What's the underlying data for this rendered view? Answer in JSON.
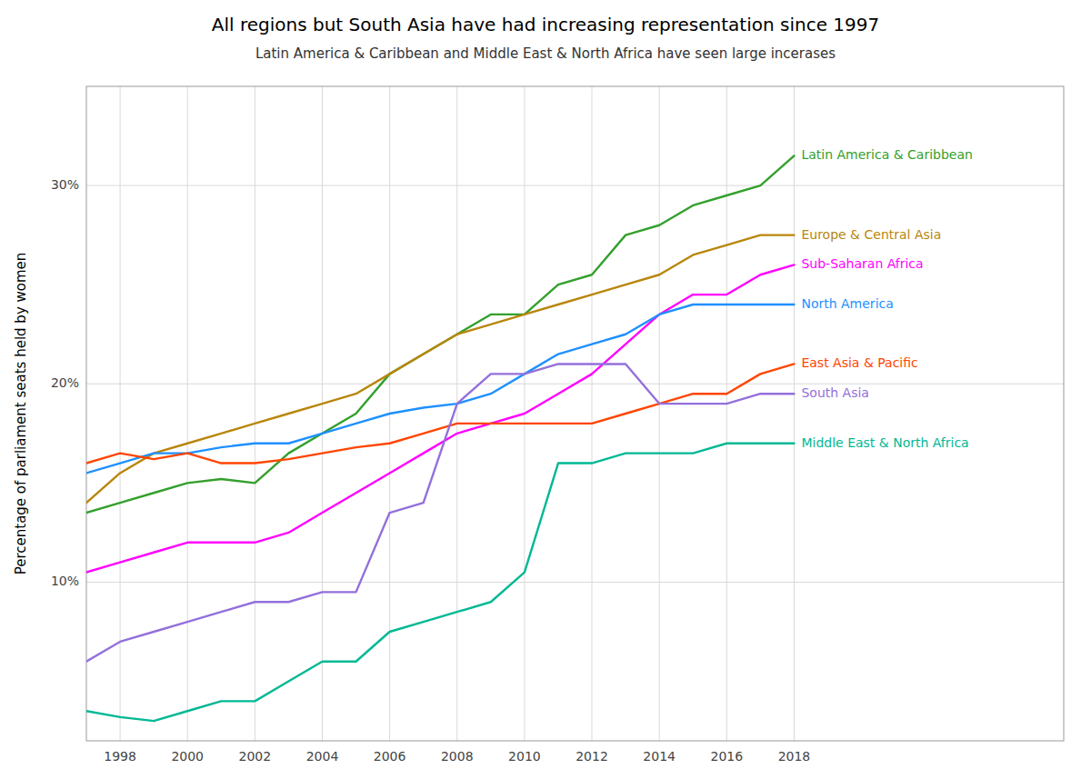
{
  "chart_data": {
    "type": "line",
    "title": "All regions but South Asia have had increasing representation since 1997",
    "subtitle": "Latin America & Caribbean and Middle East & North Africa have seen large incerases",
    "y_label": "Percentage of parliament seats held by women",
    "x": [
      1997,
      1998,
      1999,
      2000,
      2001,
      2002,
      2003,
      2004,
      2005,
      2006,
      2007,
      2008,
      2009,
      2010,
      2011,
      2012,
      2013,
      2014,
      2015,
      2016,
      2017,
      2018
    ],
    "series": [
      {
        "name": "Latin America & Caribbean",
        "color": "#33a02c",
        "values": [
          13.5,
          14.0,
          14.5,
          15.0,
          15.2,
          15.0,
          16.5,
          17.5,
          18.5,
          20.5,
          21.5,
          22.5,
          23.5,
          23.5,
          25.0,
          25.5,
          27.5,
          28.0,
          29.0,
          29.5,
          30.0,
          31.5
        ]
      },
      {
        "name": "Europe & Central Asia",
        "color": "#b8860b",
        "values": [
          14.0,
          15.5,
          16.5,
          17.0,
          17.5,
          18.0,
          18.5,
          19.0,
          19.5,
          20.5,
          21.5,
          22.5,
          23.0,
          23.5,
          24.0,
          24.5,
          25.0,
          25.5,
          26.5,
          27.0,
          27.5,
          27.5
        ]
      },
      {
        "name": "Sub-Saharan Africa",
        "color": "#ff00ff",
        "values": [
          10.5,
          11.0,
          11.5,
          12.0,
          12.0,
          12.0,
          12.5,
          13.5,
          14.5,
          15.5,
          16.5,
          17.5,
          18.0,
          18.5,
          19.5,
          20.5,
          22.0,
          23.5,
          24.5,
          24.5,
          25.5,
          26.0
        ]
      },
      {
        "name": "North America",
        "color": "#1e90ff",
        "values": [
          15.5,
          16.0,
          16.5,
          16.5,
          16.8,
          17.0,
          17.0,
          17.5,
          18.0,
          18.5,
          18.8,
          19.0,
          19.5,
          20.5,
          21.5,
          22.0,
          22.5,
          23.5,
          24.0,
          24.0,
          24.0,
          24.0
        ]
      },
      {
        "name": "East Asia & Pacific",
        "color": "#ff4500",
        "values": [
          16.0,
          16.5,
          16.2,
          16.5,
          16.0,
          16.0,
          16.2,
          16.5,
          16.8,
          17.0,
          17.5,
          18.0,
          18.0,
          18.0,
          18.0,
          18.0,
          18.5,
          19.0,
          19.5,
          19.5,
          20.5,
          21.0
        ]
      },
      {
        "name": "South Asia",
        "color": "#9370db",
        "values": [
          6.0,
          7.0,
          7.5,
          8.0,
          8.5,
          9.0,
          9.0,
          9.5,
          9.5,
          13.5,
          14.0,
          19.0,
          20.5,
          20.5,
          21.0,
          21.0,
          21.0,
          19.0,
          19.0,
          19.0,
          19.5,
          19.5
        ]
      },
      {
        "name": "Middle East & North Africa",
        "color": "#00b894",
        "values": [
          3.5,
          3.2,
          3.0,
          3.5,
          4.0,
          4.0,
          5.0,
          6.0,
          6.0,
          7.5,
          8.0,
          8.5,
          9.0,
          10.5,
          16.0,
          16.0,
          16.5,
          16.5,
          16.5,
          17.0,
          17.0,
          17.0
        ]
      }
    ],
    "xlim": [
      1997,
      2026
    ],
    "ylim": [
      2,
      35
    ],
    "xticks": [
      1998,
      2000,
      2002,
      2004,
      2006,
      2008,
      2010,
      2012,
      2014,
      2016,
      2018
    ],
    "yticks": [
      {
        "value": 10,
        "label": "10%"
      },
      {
        "value": 20,
        "label": "20%"
      },
      {
        "value": 30,
        "label": "30%"
      }
    ],
    "grid": true
  }
}
